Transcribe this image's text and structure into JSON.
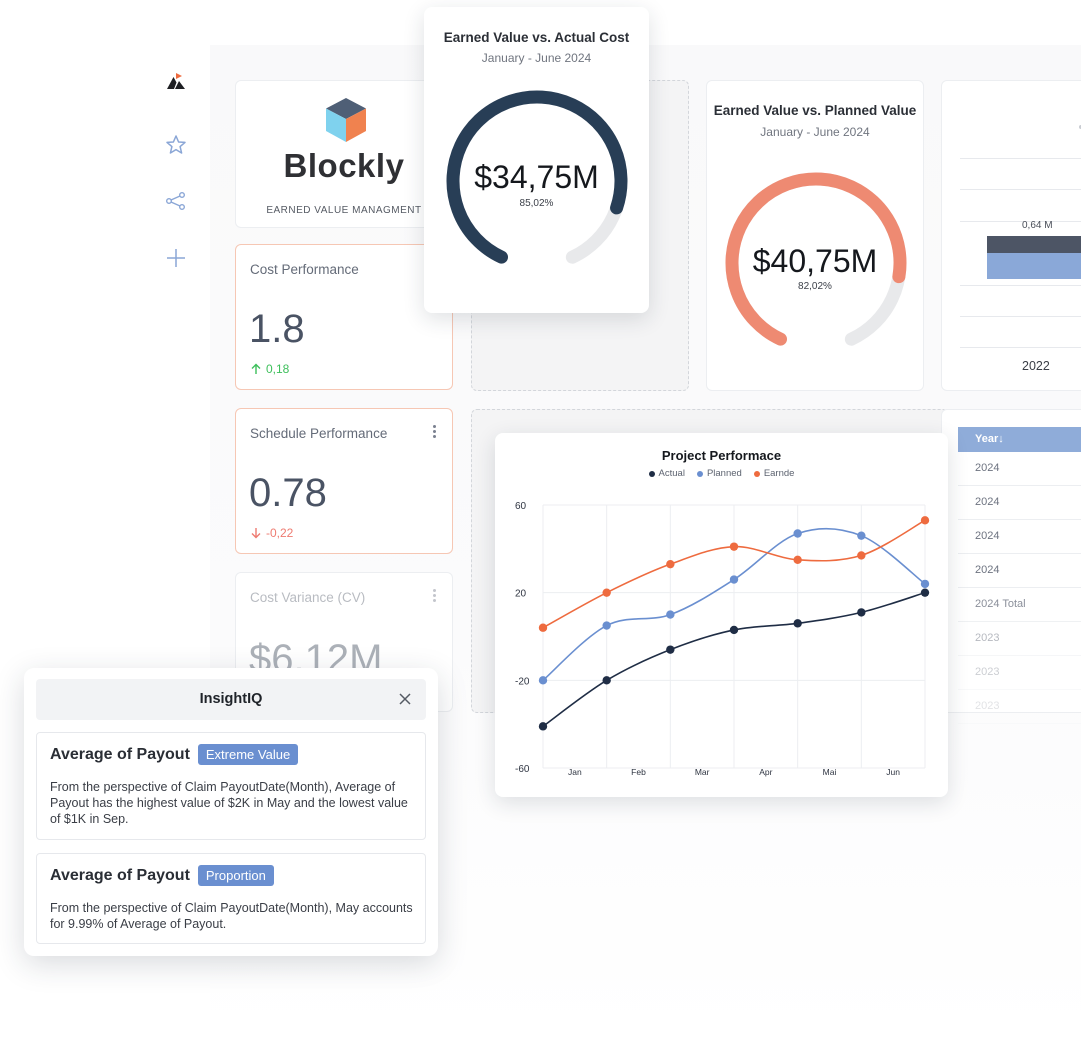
{
  "brand": {
    "name": "Blockly",
    "subtitle": "EARNED VALUE MANAGMENT",
    "colors": {
      "accent": "#ee7b5c",
      "navy": "#283e56",
      "blue": "#6a8fd0"
    }
  },
  "sidebar": {
    "items": [
      {
        "icon": "logo-icon"
      },
      {
        "icon": "star-icon"
      },
      {
        "icon": "share-icon"
      },
      {
        "icon": "plus-icon"
      }
    ]
  },
  "kpis": [
    {
      "title": "Cost Performance",
      "value": "1.8",
      "delta": "0,18",
      "direction": "up"
    },
    {
      "title": "Schedule Performance",
      "value": "0.78",
      "delta": "-0,22",
      "direction": "down"
    },
    {
      "title": "Cost Variance (CV)",
      "value": "$6.12M"
    }
  ],
  "gauges": [
    {
      "title": "Earned Value vs. Actual Cost",
      "subtitle": "January - June 2024",
      "value": "$34,75M",
      "percent": "85,02%",
      "fraction": 0.8502,
      "color": "#283e56"
    },
    {
      "title": "Earned Value vs. Planned Value",
      "subtitle": "January - June 2024",
      "value": "$40,75M",
      "percent": "82,02%",
      "fraction": 0.8202,
      "color": "#ee8a72"
    }
  ],
  "bar_card": {
    "label": "0,64 M",
    "category": "2022"
  },
  "table": {
    "header": "Year↓",
    "rows": [
      "2024",
      "2024",
      "2024",
      "2024",
      "2024 Total",
      "2023",
      "2023",
      "2023"
    ]
  },
  "chart_data": {
    "type": "line",
    "title": "Project Performace",
    "categories": [
      "Jan",
      "Feb",
      "Mar",
      "Apr",
      "Mai",
      "Jun"
    ],
    "ylim": [
      -60,
      60
    ],
    "yticks": [
      -60,
      -20,
      20,
      60
    ],
    "ytick_labels": [
      "-60",
      "-20",
      "20",
      "60"
    ],
    "grid": true,
    "legend": "top-center",
    "series": [
      {
        "name": "Actual",
        "color": "#1f2d45",
        "x": [
          0,
          1,
          2,
          3,
          4,
          5,
          6
        ],
        "values": [
          -41,
          -20,
          -6,
          3,
          6,
          11,
          20
        ]
      },
      {
        "name": "Planned",
        "color": "#6a8fd0",
        "x": [
          0,
          1,
          2,
          3,
          4,
          5,
          6
        ],
        "values": [
          -20,
          5,
          10,
          26,
          47,
          46,
          24
        ]
      },
      {
        "name": "Earnde",
        "color": "#ee6b3f",
        "x": [
          0,
          1,
          2,
          3,
          4,
          5,
          6
        ],
        "values": [
          4,
          20,
          33,
          41,
          35,
          37,
          53
        ]
      }
    ]
  },
  "insight": {
    "title": "InsightIQ",
    "cards": [
      {
        "title": "Average of Payout",
        "badge": "Extreme Value",
        "text": "From the perspective of Claim PayoutDate(Month), Average of Payout has the highest value of $2K in May and the lowest value of $1K in Sep."
      },
      {
        "title": "Average of Payout",
        "badge": "Proportion",
        "text": "From the perspective of Claim PayoutDate(Month), May accounts for 9.99% of Average of Payout."
      }
    ]
  }
}
